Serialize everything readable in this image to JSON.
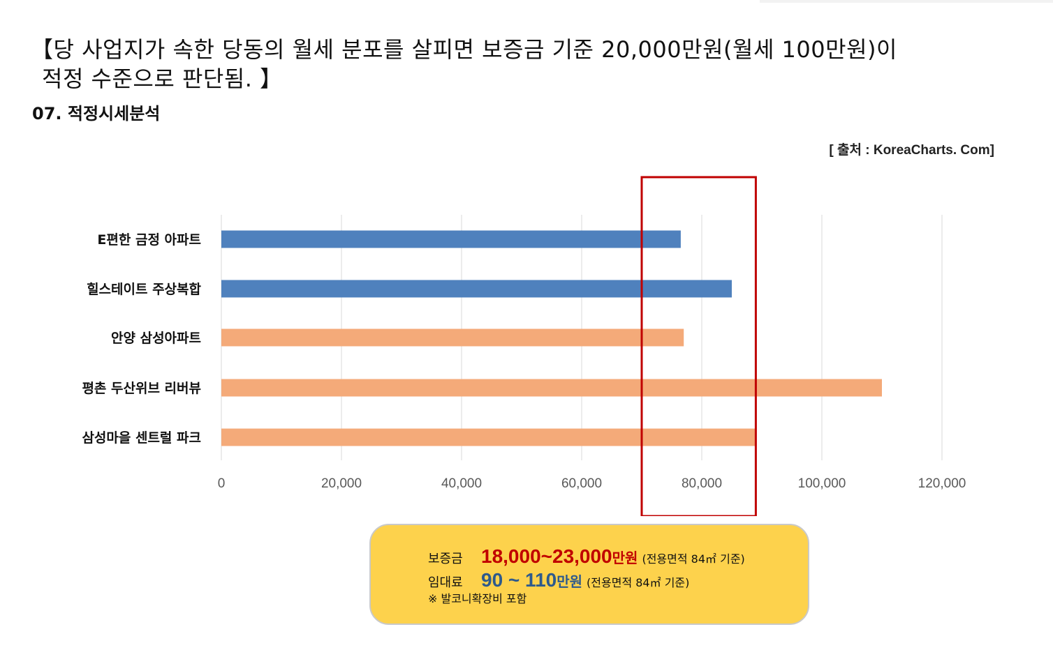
{
  "headline": {
    "line1": "【당 사업지가 속한 당동의 월세 분포를 살피면 보증금 기준 20,000만원(월세 100만원)이",
    "line2": "적정 수준으로 판단됨. 】"
  },
  "section_title": "07. 적정시세분석",
  "source": "[ 출처 : KoreaCharts. Com]",
  "chart_data": {
    "type": "bar",
    "orientation": "horizontal",
    "categories": [
      "E편한 금정 아파트",
      "힐스테이트 주상복합",
      "안양 삼성아파트",
      "평촌 두산위브 리버뷰",
      "삼성마을 센트럴 파크"
    ],
    "values": [
      76500,
      85000,
      77000,
      110000,
      89000
    ],
    "bar_colors": [
      "#4f81bd",
      "#4f81bd",
      "#f4aa79",
      "#f4aa79",
      "#f4aa79"
    ],
    "xlim": [
      0,
      120000
    ],
    "xticks": [
      0,
      20000,
      40000,
      60000,
      80000,
      100000,
      120000
    ],
    "xtick_labels": [
      "0",
      "20,000",
      "40,000",
      "60,000",
      "80,000",
      "100,000",
      "120,000"
    ],
    "grid": true,
    "highlight_range": [
      70000,
      89000
    ],
    "highlight_color": "#c00000"
  },
  "info": {
    "deposit_label": "보증금",
    "deposit_value": "18,000~23,000",
    "deposit_unit": "만원",
    "deposit_note": "(전용면적 84㎡ 기준)",
    "rent_label": "임대료",
    "rent_value": "90 ~ 110",
    "rent_unit": "만원",
    "rent_note": "(전용면적 84㎡ 기준)",
    "footnote": "※ 발코니확장비 포함"
  }
}
